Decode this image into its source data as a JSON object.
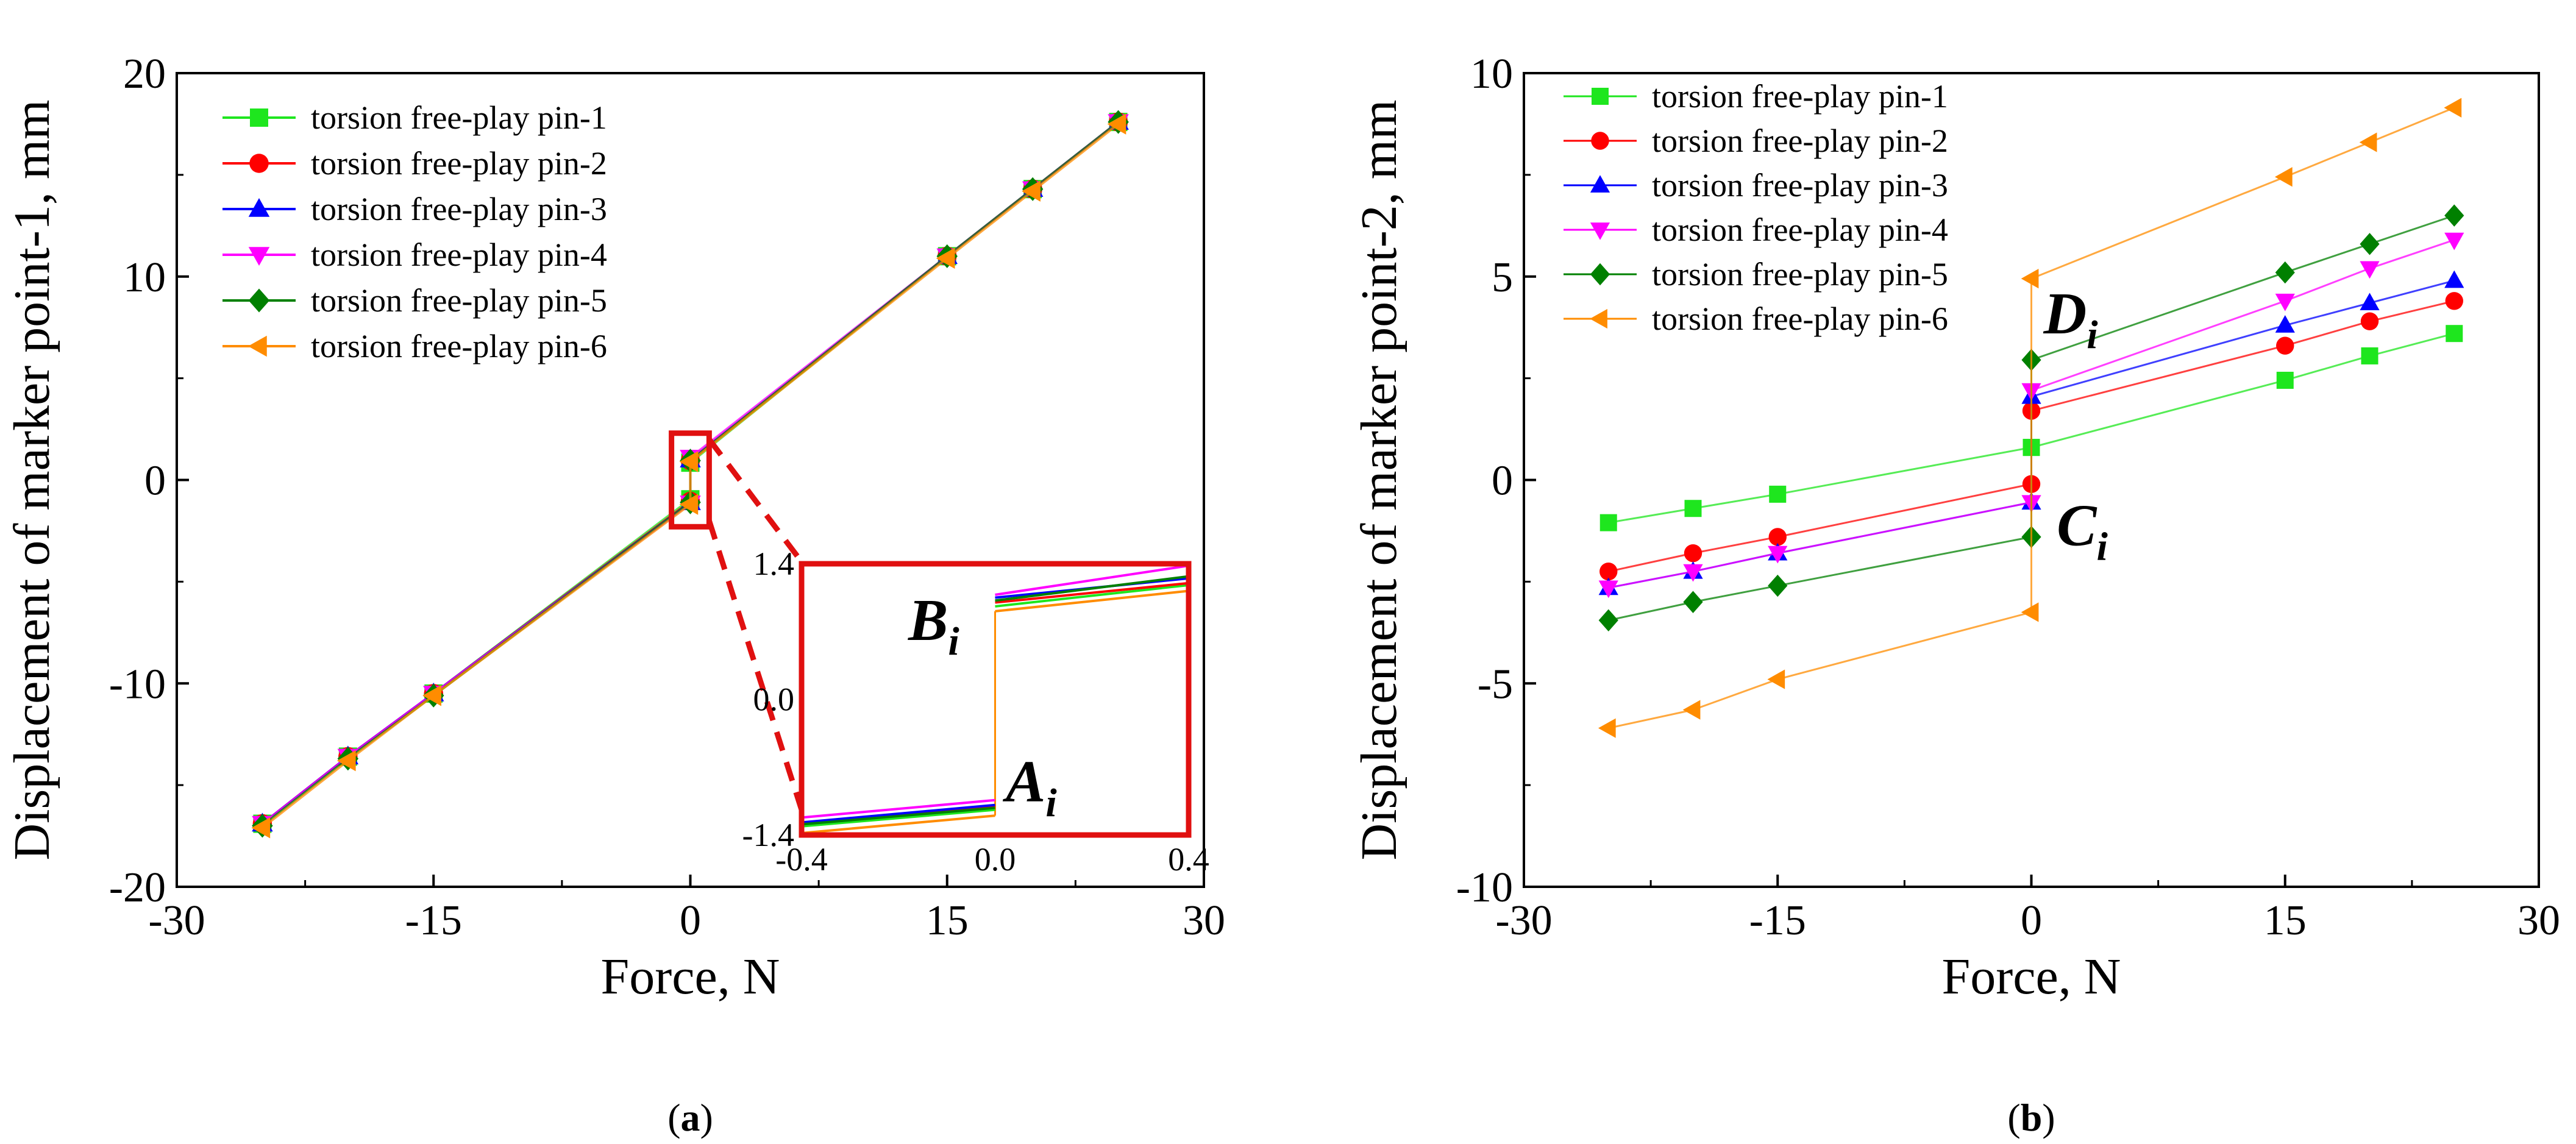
{
  "chart_data": [
    {
      "type": "line",
      "panel": "a",
      "letter": "a",
      "xlabel": "Force, N",
      "ylabel": "Displacement of marker point-1, mm",
      "xlim": [
        -30,
        30
      ],
      "ylim": [
        -20,
        20
      ],
      "xticks": [
        -30,
        -15,
        0,
        15,
        30
      ],
      "yticks": [
        -20,
        -10,
        0,
        10,
        20
      ],
      "legend_position": "top-left",
      "x": [
        -25,
        -20,
        -15,
        0,
        0,
        15,
        20,
        25
      ],
      "series": [
        {
          "name": "torsion free-play pin-1",
          "color": "#1ee61e",
          "marker": "square",
          "values": [
            -16.9,
            -13.6,
            -10.5,
            -0.95,
            0.85,
            11.0,
            14.3,
            17.6
          ]
        },
        {
          "name": "torsion free-play pin-2",
          "color": "#ff0000",
          "marker": "circle",
          "values": [
            -16.9,
            -13.6,
            -10.5,
            -1.05,
            0.95,
            11.0,
            14.3,
            17.6
          ]
        },
        {
          "name": "torsion free-play pin-3",
          "color": "#0000ff",
          "marker": "triangle-up",
          "values": [
            -16.9,
            -13.6,
            -10.5,
            -1.1,
            1.0,
            11.0,
            14.3,
            17.6
          ]
        },
        {
          "name": "torsion free-play pin-4",
          "color": "#ff00ff",
          "marker": "triangle-down",
          "values": [
            -16.9,
            -13.6,
            -10.5,
            -1.15,
            1.1,
            11.0,
            14.3,
            17.6
          ]
        },
        {
          "name": "torsion free-play pin-5",
          "color": "#008000",
          "marker": "diamond",
          "values": [
            -17.0,
            -13.7,
            -10.6,
            -1.1,
            0.95,
            11.0,
            14.3,
            17.6
          ]
        },
        {
          "name": "torsion free-play pin-6",
          "color": "#ff8c00",
          "marker": "triangle-left",
          "values": [
            -17.1,
            -13.8,
            -10.6,
            -1.2,
            0.9,
            10.9,
            14.2,
            17.5
          ]
        }
      ],
      "inset": {
        "xlim": [
          -0.4,
          0.4
        ],
        "ylim": [
          -1.4,
          1.4
        ],
        "xticks": [
          "-0.4",
          "0.0",
          "0.4"
        ],
        "yticks": [
          "-1.4",
          "0.0",
          "1.4"
        ],
        "annotations": [
          {
            "main": "B",
            "sub": "i"
          },
          {
            "main": "A",
            "sub": "i"
          }
        ],
        "series": [
          {
            "name": "pin-1",
            "left": [
              -1.31,
              -1.14
            ],
            "right": [
              0.96,
              1.18
            ]
          },
          {
            "name": "pin-2",
            "left": [
              -1.28,
              -1.11
            ],
            "right": [
              1.0,
              1.2
            ]
          },
          {
            "name": "pin-3",
            "left": [
              -1.27,
              -1.09
            ],
            "right": [
              1.05,
              1.25
            ]
          },
          {
            "name": "pin-4",
            "left": [
              -1.22,
              -1.04
            ],
            "right": [
              1.08,
              1.38
            ]
          },
          {
            "name": "pin-5",
            "left": [
              -1.29,
              -1.12
            ],
            "right": [
              1.02,
              1.27
            ]
          },
          {
            "name": "pin-6",
            "left": [
              -1.38,
              -1.2
            ],
            "right": [
              0.91,
              1.12
            ]
          }
        ]
      }
    },
    {
      "type": "line",
      "panel": "b",
      "letter": "b",
      "xlabel": "Force, N",
      "ylabel": "Displacement of marker point-2, mm",
      "xlim": [
        -30,
        30
      ],
      "ylim": [
        -10,
        10
      ],
      "xticks": [
        -30,
        -15,
        0,
        15,
        30
      ],
      "yticks": [
        -10,
        -5,
        0,
        5,
        10
      ],
      "legend_position": "top-left",
      "x": [
        -25,
        -20,
        -15,
        0,
        0,
        15,
        20,
        25
      ],
      "series": [
        {
          "name": "torsion free-play pin-1",
          "color": "#1ee61e",
          "marker": "square",
          "values": [
            -1.05,
            -0.7,
            -0.35,
            0.8,
            0.8,
            2.45,
            3.05,
            3.6
          ]
        },
        {
          "name": "torsion free-play pin-2",
          "color": "#ff0000",
          "marker": "circle",
          "values": [
            -2.25,
            -1.8,
            -1.4,
            -0.1,
            1.7,
            3.3,
            3.9,
            4.4
          ]
        },
        {
          "name": "torsion free-play pin-3",
          "color": "#0000ff",
          "marker": "triangle-up",
          "values": [
            -2.65,
            -2.25,
            -1.8,
            -0.55,
            2.05,
            3.8,
            4.35,
            4.9
          ]
        },
        {
          "name": "torsion free-play pin-4",
          "color": "#ff00ff",
          "marker": "triangle-down",
          "values": [
            -2.65,
            -2.25,
            -1.8,
            -0.55,
            2.2,
            4.4,
            5.2,
            5.9
          ]
        },
        {
          "name": "torsion free-play pin-5",
          "color": "#008000",
          "marker": "diamond",
          "values": [
            -3.45,
            -3.0,
            -2.6,
            -1.4,
            2.95,
            5.1,
            5.8,
            6.5
          ]
        },
        {
          "name": "torsion free-play pin-6",
          "color": "#ff8c00",
          "marker": "triangle-left",
          "values": [
            -6.1,
            -5.65,
            -4.9,
            -3.25,
            4.95,
            7.45,
            8.3,
            9.15
          ]
        }
      ],
      "annotations": [
        {
          "main": "D",
          "sub": "i"
        },
        {
          "main": "C",
          "sub": "i"
        }
      ]
    }
  ]
}
